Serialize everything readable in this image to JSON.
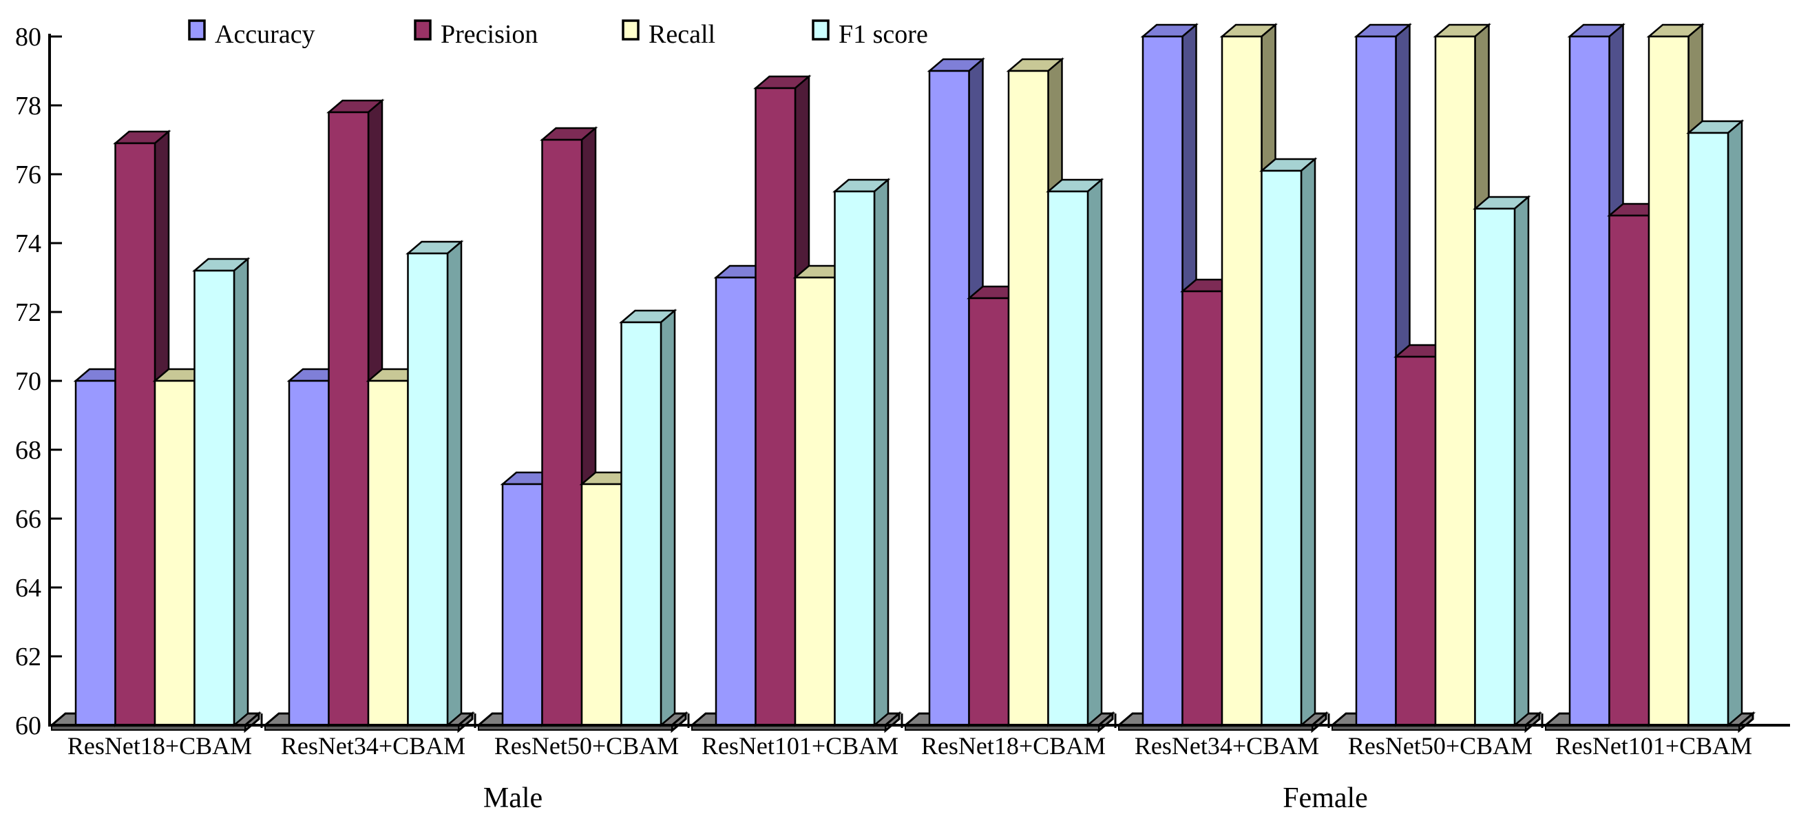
{
  "figure": {
    "background": "#FFFFFF",
    "axis_color": "#000000"
  },
  "chart_data": {
    "type": "bar",
    "pseudo_3d": true,
    "title": "",
    "xlabel": "",
    "ylabel": "",
    "categories": [
      "ResNet18+CBAM",
      "ResNet34+CBAM",
      "ResNet50+CBAM",
      "ResNet101+CBAM",
      "ResNet18+CBAM",
      "ResNet34+CBAM",
      "ResNet50+CBAM",
      "ResNet101+CBAM"
    ],
    "group_labels": [
      {
        "label": "Male",
        "categories": [
          0,
          1,
          2,
          3
        ]
      },
      {
        "label": "Female",
        "categories": [
          4,
          5,
          6,
          7
        ]
      }
    ],
    "series": [
      {
        "name": "Accuracy",
        "values": [
          70.0,
          70.0,
          67.0,
          73.0,
          79.0,
          80.0,
          80.0,
          80.0
        ],
        "color": {
          "front": "#9999FF",
          "top": "#7F7FD8",
          "side": "#50508C"
        }
      },
      {
        "name": "Precision",
        "values": [
          76.9,
          77.8,
          77.0,
          78.5,
          72.4,
          72.6,
          70.7,
          74.8
        ],
        "color": {
          "front": "#993366",
          "top": "#7D2B55",
          "side": "#4F1B38"
        }
      },
      {
        "name": "Recall",
        "values": [
          70.0,
          70.0,
          67.0,
          73.0,
          79.0,
          80.0,
          80.0,
          80.0
        ],
        "color": {
          "front": "#FFFFCC",
          "top": "#C8C896",
          "side": "#8C8C66"
        }
      },
      {
        "name": "F1 score",
        "values": [
          73.2,
          73.7,
          71.7,
          75.5,
          75.5,
          76.1,
          75.0,
          77.2
        ],
        "color": {
          "front": "#CCFFFF",
          "top": "#A6D2D2",
          "side": "#78A4A4"
        }
      }
    ],
    "y_axis": {
      "min": 60,
      "max": 80,
      "step": 2,
      "tick_labels": [
        "60",
        "62",
        "64",
        "66",
        "68",
        "70",
        "72",
        "74",
        "76",
        "78",
        "80"
      ]
    },
    "legend": {
      "position": "top",
      "labels": [
        "Accuracy",
        "Precision",
        "Recall",
        "F1 score"
      ]
    },
    "grid": false,
    "floor_color": {
      "top": "#7F7F7F",
      "front": "#5C5C5C"
    }
  }
}
